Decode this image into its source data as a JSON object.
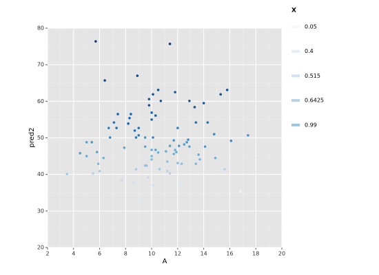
{
  "chart_data": {
    "type": "scatter",
    "x_label": "A",
    "y_label": "pred2",
    "legend_title": "X",
    "xlim": [
      2,
      20
    ],
    "xticks": [
      2,
      4,
      6,
      8,
      10,
      12,
      14,
      16,
      18,
      20
    ],
    "ylim": [
      20,
      80
    ],
    "yticks": [
      20,
      30,
      40,
      50,
      60,
      70,
      80
    ],
    "grid": true,
    "background": "#e5e5e5",
    "color_scale": [
      "#f7fbff",
      "#c6dbef",
      "#6baed6",
      "#2171b5",
      "#08306b"
    ],
    "legend_values": [
      0.05,
      0.4,
      0.515,
      0.6425,
      0.99
    ],
    "legend_colors": [
      "#f3f8fd",
      "#e4eef8",
      "#cfe1f2",
      "#b9d4ea",
      "#9ac8e0"
    ],
    "x": [
      5.7,
      11.4,
      6.4,
      8.9,
      10.1,
      10.5,
      9.8,
      10.7,
      11.8,
      12.9,
      14.0,
      15.3,
      15.8,
      9.8,
      13.3,
      10.0,
      10.3,
      8.4,
      7.4,
      8.3,
      10.0,
      7.1,
      8.2,
      6.7,
      7.3,
      9.0,
      8.7,
      12.0,
      13.4,
      14.3,
      14.8,
      17.4,
      16.1,
      8.8,
      9.5,
      10.1,
      6.8,
      9.0,
      5.0,
      5.4,
      11.7,
      12.8,
      12.7,
      12.5,
      12.1,
      11.4,
      12.9,
      14.1,
      7.9,
      9.5,
      10.0,
      10.3,
      11.1,
      11.8,
      5.8,
      11.9,
      10.5,
      4.5,
      11.7,
      13.6,
      5.0,
      10.0,
      14.9,
      6.3,
      10.0,
      13.7,
      11.2,
      12.0,
      12.3,
      13.4,
      5.9,
      9.5,
      9.6,
      10.6,
      8.8,
      15.6,
      6.0,
      11.2,
      3.5,
      5.5,
      11.4,
      9.7,
      7.7,
      8.6,
      10.1,
      12.2,
      15.6,
      9.3,
      11.4,
      16.8
    ],
    "y": [
      76.4,
      75.7,
      65.7,
      67.0,
      61.9,
      63.1,
      60.6,
      60.1,
      62.5,
      60.1,
      59.5,
      61.9,
      63.1,
      58.9,
      58.4,
      56.9,
      56.1,
      56.5,
      56.5,
      55.4,
      55.0,
      54.2,
      53.9,
      52.7,
      52.7,
      52.7,
      52.0,
      52.7,
      54.2,
      54.2,
      51.0,
      50.7,
      49.2,
      50.1,
      50.1,
      50.1,
      50.1,
      50.7,
      48.8,
      48.8,
      49.3,
      49.5,
      48.8,
      48.2,
      47.8,
      47.8,
      47.6,
      47.6,
      47.3,
      47.6,
      46.7,
      46.7,
      46.3,
      46.7,
      46.1,
      46.1,
      46.0,
      45.8,
      45.6,
      45.4,
      45.0,
      45.0,
      44.5,
      44.5,
      44.1,
      44.1,
      43.5,
      43.1,
      42.9,
      42.9,
      42.9,
      42.4,
      42.4,
      41.4,
      41.4,
      41.4,
      40.9,
      40.9,
      40.1,
      40.3,
      40.3,
      39.2,
      38.4,
      37.7,
      37.1,
      37.1,
      37.3,
      32.8,
      29.8,
      35.4
    ],
    "color_values": [
      0.95,
      0.95,
      0.9,
      0.9,
      0.85,
      0.85,
      0.85,
      0.85,
      0.85,
      0.85,
      0.85,
      0.85,
      0.85,
      0.85,
      0.85,
      0.8,
      0.8,
      0.8,
      0.8,
      0.8,
      0.8,
      0.75,
      0.8,
      0.7,
      0.75,
      0.75,
      0.75,
      0.7,
      0.75,
      0.75,
      0.65,
      0.6,
      0.65,
      0.7,
      0.6,
      0.65,
      0.65,
      0.7,
      0.55,
      0.6,
      0.6,
      0.65,
      0.6,
      0.55,
      0.6,
      0.55,
      0.55,
      0.6,
      0.55,
      0.55,
      0.5,
      0.55,
      0.5,
      0.5,
      0.55,
      0.5,
      0.5,
      0.55,
      0.5,
      0.5,
      0.5,
      0.45,
      0.5,
      0.5,
      0.45,
      0.45,
      0.4,
      0.4,
      0.4,
      0.45,
      0.45,
      0.4,
      0.4,
      0.35,
      0.35,
      0.3,
      0.35,
      0.3,
      0.35,
      0.3,
      0.3,
      0.25,
      0.25,
      0.2,
      0.2,
      0.15,
      0.15,
      0.15,
      0.1,
      0.05
    ]
  }
}
